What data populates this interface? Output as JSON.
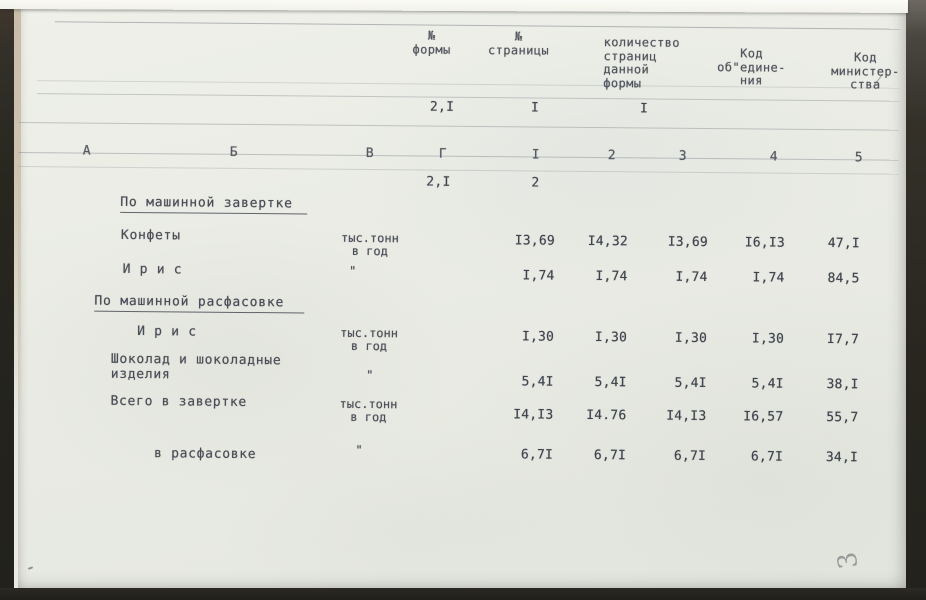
{
  "meta": {
    "document_type": "scanned typewritten table (Russian)",
    "colors": {
      "ink": "#474a53",
      "paper": "#e9ebe4"
    }
  },
  "header": {
    "col_form_no": "№\nформы",
    "col_page_no": "№\nстраницы",
    "col_pages_count": "количество\nстраниц\nданной\nформы",
    "col_org_code": "Код\nоб\"едине-\nния",
    "col_ministry_code": "Код\nминистер-\nства",
    "form_no_value": "2,I",
    "page_no_value": "I",
    "pages_count_value": "I"
  },
  "grid_row": {
    "letters": [
      "А",
      "Б",
      "В",
      "Г"
    ],
    "numbers": [
      "I",
      "2",
      "3",
      "4",
      "5"
    ]
  },
  "subheader_row": {
    "form": "2,I",
    "page": "2"
  },
  "table": {
    "section1_title": "По машинной завертке",
    "section2_title": "По машинной расфасовке",
    "rows": [
      {
        "name": "Конфеты",
        "unit": "тыс.тонн\nв год",
        "values": [
          "I3,69",
          "I4,32",
          "I3,69",
          "I6,I3",
          "47,I"
        ]
      },
      {
        "name": "И р и с",
        "unit": "\"",
        "values": [
          "I,74",
          "I,74",
          "I,74",
          "I,74",
          "84,5"
        ]
      },
      {
        "name": "И р и с",
        "unit": "тыс.тонн\nв год",
        "values": [
          "I,30",
          "I,30",
          "I,30",
          "I,30",
          "I7,7"
        ]
      },
      {
        "name": "Шоколад и шоколадные\nизделия",
        "unit": "\"",
        "values": [
          "5,4I",
          "5,4I",
          "5,4I",
          "5,4I",
          "38,I"
        ]
      },
      {
        "name": "Всего в завертке",
        "unit": "тыс.тонн\nв год",
        "values": [
          "I4,I3",
          "I4.76",
          "I4,I3",
          "I6,57",
          "55,7"
        ]
      },
      {
        "name": "в расфасовке",
        "unit": "\"",
        "values": [
          "6,7I",
          "6,7I",
          "6,7I",
          "6,7I",
          "34,I"
        ]
      }
    ]
  },
  "annotations": {
    "handwritten_page_mark": "3",
    "stray_pencil_mark": "/"
  }
}
